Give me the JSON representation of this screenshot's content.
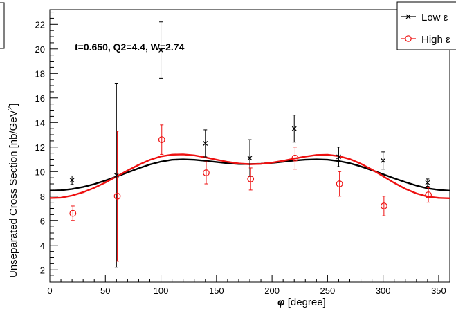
{
  "chart_data": {
    "type": "scatter",
    "xlabel_symbol": "φ",
    "xlabel_unit": "[degree]",
    "ylabel": "Unseparated Cross Section [nb/GeV",
    "ylabel_exp": "2",
    "ylabel_close": "]",
    "annotation": "t=0.650, Q2=4.4, W=2.74",
    "xlim": [
      0,
      360
    ],
    "ylim": [
      1,
      23.2
    ],
    "x_ticks": [
      0,
      50,
      100,
      150,
      200,
      250,
      300,
      350
    ],
    "y_ticks": [
      2,
      4,
      6,
      8,
      10,
      12,
      14,
      16,
      18,
      20,
      22
    ],
    "legend_position": "top-right",
    "series": [
      {
        "name": "Low ε",
        "color": "#000000",
        "marker": "x",
        "x": [
          20,
          60,
          100,
          140,
          180,
          220,
          260,
          300,
          340
        ],
        "y": [
          9.3,
          9.7,
          19.9,
          12.3,
          11.1,
          13.5,
          11.2,
          10.9,
          9.1
        ],
        "err": [
          0.35,
          7.5,
          2.3,
          1.1,
          1.5,
          1.1,
          0.8,
          0.7,
          0.3
        ],
        "fit": [
          8.45,
          8.48,
          8.58,
          8.75,
          8.98,
          9.27,
          9.59,
          9.93,
          10.27,
          10.58,
          10.81,
          10.96,
          11.0,
          10.96,
          10.88,
          10.78,
          10.68,
          10.62,
          10.61,
          10.64,
          10.71,
          10.8,
          10.9,
          10.97,
          11.0,
          10.97,
          10.86,
          10.68,
          10.42,
          10.11,
          9.78,
          9.45,
          9.14,
          8.86,
          8.64,
          8.51,
          8.45
        ]
      },
      {
        "name": "High ε",
        "color": "#ee1111",
        "marker": "o",
        "x": [
          20,
          60,
          100,
          140,
          180,
          220,
          260,
          300,
          340
        ],
        "y": [
          6.6,
          8.0,
          12.6,
          9.9,
          9.4,
          11.1,
          9.0,
          7.2,
          8.1
        ],
        "err": [
          0.6,
          5.3,
          1.2,
          0.9,
          0.9,
          0.9,
          1.0,
          0.8,
          0.6
        ],
        "fit": [
          7.85,
          7.88,
          8.05,
          8.32,
          8.68,
          9.11,
          9.6,
          10.09,
          10.55,
          10.95,
          11.24,
          11.38,
          11.4,
          11.32,
          11.16,
          10.97,
          10.79,
          10.66,
          10.6,
          10.63,
          10.73,
          10.88,
          11.06,
          11.22,
          11.35,
          11.37,
          11.26,
          11.02,
          10.64,
          10.16,
          9.62,
          9.08,
          8.6,
          8.22,
          7.97,
          7.86,
          7.83
        ]
      }
    ]
  }
}
